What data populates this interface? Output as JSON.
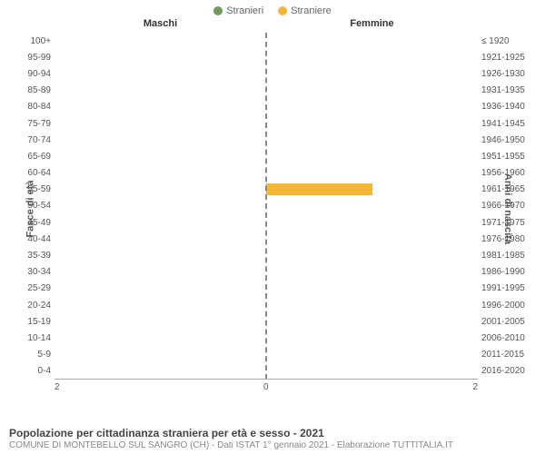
{
  "legend": [
    {
      "label": "Stranieri",
      "color": "#6b9a5b"
    },
    {
      "label": "Straniere",
      "color": "#f5b733"
    }
  ],
  "column_headers": {
    "left": "Maschi",
    "right": "Femmine"
  },
  "y_left_label": "Fasce di età",
  "y_right_label": "Anni di nascita",
  "age_groups": [
    "100+",
    "95-99",
    "90-94",
    "85-89",
    "80-84",
    "75-79",
    "70-74",
    "65-69",
    "60-64",
    "55-59",
    "50-54",
    "45-49",
    "40-44",
    "35-39",
    "30-34",
    "25-29",
    "20-24",
    "15-19",
    "10-14",
    "5-9",
    "0-4"
  ],
  "birth_years": [
    "≤ 1920",
    "1921-1925",
    "1926-1930",
    "1931-1935",
    "1936-1940",
    "1941-1945",
    "1946-1950",
    "1951-1955",
    "1956-1960",
    "1961-1965",
    "1966-1970",
    "1971-1975",
    "1976-1980",
    "1981-1985",
    "1986-1990",
    "1991-1995",
    "1996-2000",
    "2001-2005",
    "2006-2010",
    "2011-2015",
    "2016-2020"
  ],
  "male_values": [
    0,
    0,
    0,
    0,
    0,
    0,
    0,
    0,
    0,
    0,
    0,
    0,
    0,
    0,
    0,
    0,
    0,
    0,
    0,
    0,
    0
  ],
  "female_values": [
    0,
    0,
    0,
    0,
    0,
    0,
    0,
    0,
    0,
    1,
    0,
    0,
    0,
    0,
    0,
    0,
    0,
    0,
    0,
    0,
    0
  ],
  "x_axis": {
    "min": 0,
    "max": 2,
    "ticks": [
      2,
      0,
      2
    ]
  },
  "colors": {
    "male_bar": "#6b9a5b",
    "female_bar": "#f5b733",
    "center_line": "#888888",
    "background": "#ffffff",
    "text": "#555555"
  },
  "footer": {
    "title": "Popolazione per cittadinanza straniera per età e sesso - 2021",
    "subtitle": "COMUNE DI MONTEBELLO SUL SANGRO (CH) - Dati ISTAT 1° gennaio 2021 - Elaborazione TUTTITALIA.IT"
  }
}
